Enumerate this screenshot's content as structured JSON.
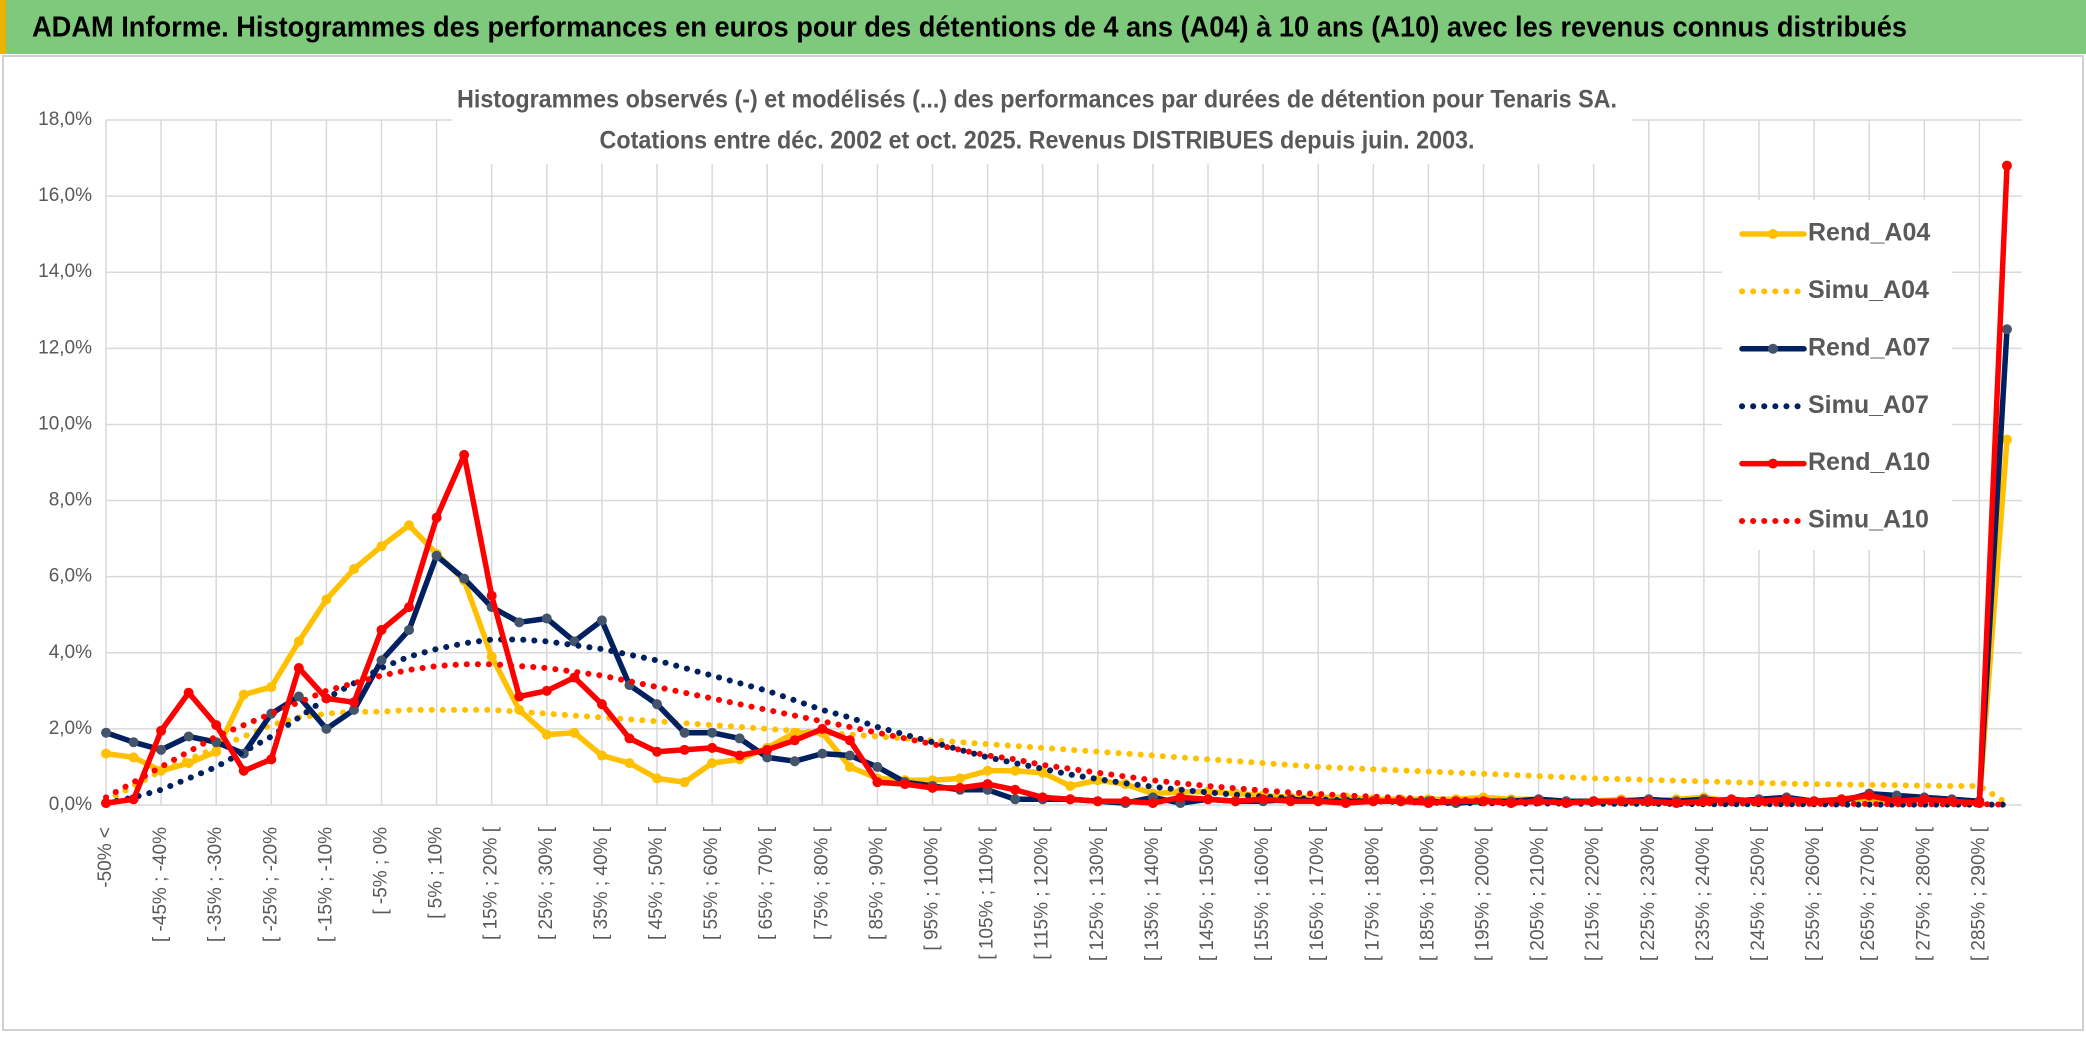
{
  "header": {
    "title": "ADAM Informe. Histogrammes des performances en euros pour des détentions de 4 ans (A04) à 10 ans (A10) avec les revenus connus distribués"
  },
  "chart_data": {
    "type": "line",
    "title": [
      "Histogrammes observés (-) et modélisés (...) des performances par durées de détention pour Tenaris SA.",
      "Cotations entre déc. 2002 et oct. 2025. Revenus DISTRIBUES depuis juin. 2003."
    ],
    "categories": [
      "-50% <",
      null,
      "[ -45% ; -40%",
      null,
      "[ -35% ; -30%",
      null,
      "[ -25% ; -20%",
      null,
      "[ -15% ; -10%",
      null,
      "[ -5% ; 0%",
      null,
      "[ 5% ; 10%",
      null,
      "[ 15% ; 20% [",
      null,
      "[ 25% ; 30% [",
      null,
      "[ 35% ; 40% [",
      null,
      "[ 45% ; 50% [",
      null,
      "[ 55% ; 60% [",
      null,
      "[ 65% ; 70% [",
      null,
      "[ 75% ; 80% [",
      null,
      "[ 85% ; 90% [",
      null,
      "[ 95% ; 100% [",
      null,
      "[ 105% ; 110% [",
      null,
      "[ 115% ; 120% [",
      null,
      "[ 125% ; 130% [",
      null,
      "[ 135% ; 140% [",
      null,
      "[ 145% ; 150% [",
      null,
      "[ 155% ; 160% [",
      null,
      "[ 165% ; 170% [",
      null,
      "[ 175% ; 180% [",
      null,
      "[ 185% ; 190% [",
      null,
      "[ 195% ; 200% [",
      null,
      "[ 205% ; 210% [",
      null,
      "[ 215% ; 220% [",
      null,
      "[ 225% ; 230% [",
      null,
      "[ 235% ; 240% [",
      null,
      "[ 245% ; 250% [",
      null,
      "[ 255% ; 260% [",
      null,
      "[ 265% ; 270% [",
      null,
      "[ 275% ; 280% [",
      null,
      "[ 285% ; 290% [",
      null
    ],
    "series": [
      {
        "name": "Rend_A04",
        "color": "#FFC000",
        "marker_color": "#FFC000",
        "style": "solid",
        "markers": true,
        "values": [
          1.35,
          1.25,
          0.9,
          1.1,
          1.4,
          2.9,
          3.1,
          4.3,
          5.4,
          6.2,
          6.8,
          7.35,
          6.6,
          5.9,
          3.9,
          2.5,
          1.85,
          1.9,
          1.3,
          1.1,
          0.7,
          0.6,
          1.1,
          1.2,
          1.5,
          1.9,
          1.9,
          1.0,
          0.7,
          0.65,
          0.65,
          0.7,
          0.9,
          0.9,
          0.85,
          0.5,
          0.65,
          0.55,
          0.3,
          0.35,
          0.35,
          0.3,
          0.25,
          0.2,
          0.2,
          0.2,
          0.15,
          0.15,
          0.15,
          0.15,
          0.2,
          0.15,
          0.15,
          0.1,
          0.1,
          0.15,
          0.1,
          0.15,
          0.2,
          0.1,
          0.15,
          0.1,
          0.1,
          0.15,
          0.15,
          0.1,
          0.15,
          0.1,
          0.1,
          9.6
        ]
      },
      {
        "name": "Simu_A04",
        "color": "#FFC000",
        "style": "dotted",
        "markers": false,
        "values": [
          0.1,
          0.5,
          0.9,
          1.2,
          1.5,
          1.8,
          2.1,
          2.3,
          2.4,
          2.45,
          2.45,
          2.5,
          2.5,
          2.5,
          2.5,
          2.45,
          2.4,
          2.35,
          2.3,
          2.25,
          2.2,
          2.15,
          2.1,
          2.05,
          2.0,
          1.95,
          1.9,
          1.85,
          1.8,
          1.75,
          1.7,
          1.65,
          1.6,
          1.55,
          1.5,
          1.45,
          1.4,
          1.35,
          1.3,
          1.25,
          1.2,
          1.15,
          1.1,
          1.05,
          1.0,
          0.97,
          0.94,
          0.91,
          0.88,
          0.85,
          0.82,
          0.79,
          0.76,
          0.73,
          0.7,
          0.68,
          0.66,
          0.64,
          0.62,
          0.6,
          0.58,
          0.56,
          0.55,
          0.54,
          0.53,
          0.52,
          0.51,
          0.5,
          0.5,
          0.05
        ]
      },
      {
        "name": "Rend_A07",
        "color": "#002060",
        "marker_color": "#44546A",
        "style": "solid",
        "markers": true,
        "values": [
          1.9,
          1.65,
          1.45,
          1.8,
          1.65,
          1.35,
          2.4,
          2.85,
          2.0,
          2.5,
          3.8,
          4.6,
          6.55,
          5.95,
          5.2,
          4.8,
          4.9,
          4.3,
          4.85,
          3.15,
          2.65,
          1.9,
          1.9,
          1.75,
          1.25,
          1.15,
          1.35,
          1.3,
          1.0,
          0.6,
          0.5,
          0.4,
          0.4,
          0.15,
          0.15,
          0.15,
          0.1,
          0.05,
          0.2,
          0.05,
          0.15,
          0.1,
          0.1,
          0.15,
          0.1,
          0.1,
          0.1,
          0.1,
          0.1,
          0.05,
          0.1,
          0.1,
          0.15,
          0.1,
          0.1,
          0.1,
          0.15,
          0.1,
          0.15,
          0.1,
          0.15,
          0.2,
          0.1,
          0.1,
          0.3,
          0.25,
          0.2,
          0.15,
          0.1,
          12.5
        ]
      },
      {
        "name": "Simu_A07",
        "color": "#002060",
        "style": "dotted",
        "markers": false,
        "values": [
          0.05,
          0.2,
          0.4,
          0.7,
          1.0,
          1.4,
          1.8,
          2.3,
          2.8,
          3.2,
          3.6,
          3.9,
          4.1,
          4.25,
          4.35,
          4.35,
          4.3,
          4.2,
          4.1,
          3.95,
          3.8,
          3.6,
          3.4,
          3.2,
          3.0,
          2.75,
          2.5,
          2.3,
          2.05,
          1.85,
          1.65,
          1.45,
          1.25,
          1.1,
          0.95,
          0.8,
          0.68,
          0.57,
          0.48,
          0.4,
          0.33,
          0.27,
          0.22,
          0.18,
          0.15,
          0.12,
          0.1,
          0.08,
          0.06,
          0.05,
          0.05,
          0.04,
          0.04,
          0.04,
          0.03,
          0.03,
          0.03,
          0.03,
          0.02,
          0.02,
          0.02,
          0.02,
          0.02,
          0.01,
          0.01,
          0.01,
          0.01,
          0.01,
          0.01,
          0.01
        ]
      },
      {
        "name": "Rend_A10",
        "color": "#FF0000",
        "marker_color": "#FF0000",
        "style": "solid",
        "markers": true,
        "values": [
          0.05,
          0.15,
          1.95,
          2.95,
          2.1,
          0.9,
          1.2,
          3.6,
          2.8,
          2.7,
          4.6,
          5.2,
          7.55,
          9.2,
          5.5,
          2.85,
          3.0,
          3.35,
          2.65,
          1.75,
          1.4,
          1.45,
          1.5,
          1.3,
          1.45,
          1.7,
          2.0,
          1.7,
          0.6,
          0.55,
          0.45,
          0.45,
          0.55,
          0.4,
          0.2,
          0.15,
          0.1,
          0.1,
          0.05,
          0.2,
          0.15,
          0.1,
          0.15,
          0.1,
          0.1,
          0.05,
          0.1,
          0.1,
          0.05,
          0.1,
          0.1,
          0.05,
          0.1,
          0.05,
          0.1,
          0.1,
          0.1,
          0.05,
          0.1,
          0.15,
          0.1,
          0.15,
          0.1,
          0.15,
          0.25,
          0.1,
          0.15,
          0.1,
          0.05,
          16.8
        ]
      },
      {
        "name": "Simu_A10",
        "color": "#FF0000",
        "style": "dotted",
        "markers": false,
        "values": [
          0.2,
          0.6,
          1.0,
          1.4,
          1.8,
          2.1,
          2.4,
          2.7,
          3.0,
          3.2,
          3.4,
          3.55,
          3.65,
          3.7,
          3.7,
          3.65,
          3.6,
          3.5,
          3.4,
          3.25,
          3.1,
          2.95,
          2.8,
          2.65,
          2.5,
          2.35,
          2.2,
          2.05,
          1.9,
          1.75,
          1.6,
          1.45,
          1.3,
          1.2,
          1.05,
          0.95,
          0.85,
          0.75,
          0.65,
          0.57,
          0.5,
          0.44,
          0.38,
          0.33,
          0.29,
          0.25,
          0.22,
          0.19,
          0.16,
          0.14,
          0.12,
          0.1,
          0.09,
          0.08,
          0.07,
          0.06,
          0.05,
          0.05,
          0.04,
          0.04,
          0.04,
          0.03,
          0.03,
          0.03,
          0.03,
          0.02,
          0.02,
          0.02,
          0.02,
          0.01
        ]
      }
    ],
    "ylim": [
      0,
      18
    ],
    "yticks": [
      {
        "value": 0,
        "label": "0,0%"
      },
      {
        "value": 2,
        "label": "2,0%"
      },
      {
        "value": 4,
        "label": "4,0%"
      },
      {
        "value": 6,
        "label": "6,0%"
      },
      {
        "value": 8,
        "label": "8,0%"
      },
      {
        "value": 10,
        "label": "10,0%"
      },
      {
        "value": 12,
        "label": "12,0%"
      },
      {
        "value": 14,
        "label": "14,0%"
      },
      {
        "value": 16,
        "label": "16,0%"
      },
      {
        "value": 18,
        "label": "18,0%"
      }
    ],
    "grid": true,
    "legend": "right"
  }
}
